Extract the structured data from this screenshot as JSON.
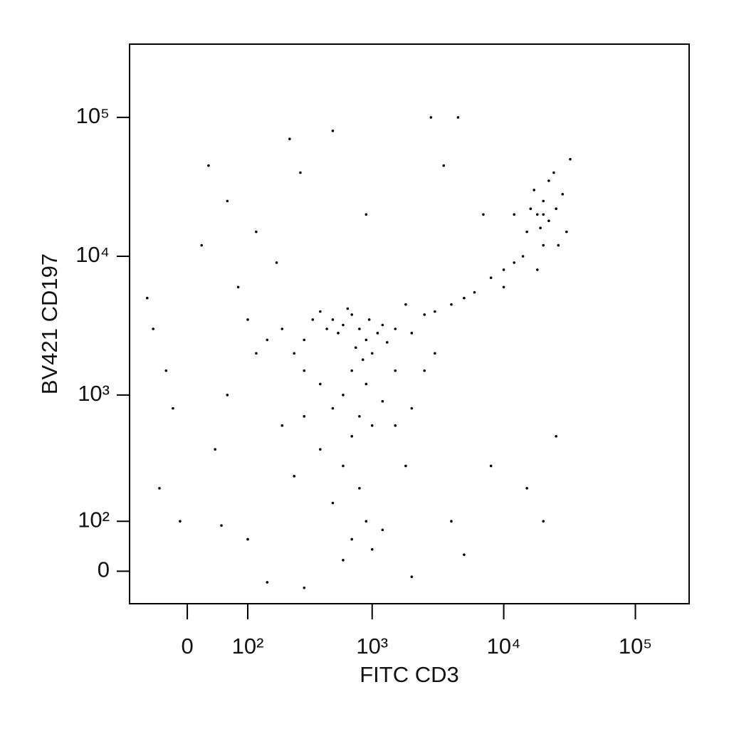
{
  "chart_data": {
    "type": "scatter",
    "x_label": "FITC CD3",
    "y_label": "BV421 CD197",
    "xscale": "biexponential",
    "yscale": "biexponential",
    "xlim": [
      -94,
      256000
    ],
    "ylim": [
      -61,
      337000
    ],
    "xticks": [
      0,
      {
        "value": 100,
        "label": "10²"
      },
      {
        "value": 1000,
        "label": "10³"
      },
      {
        "value": 10000,
        "label": "10⁴"
      },
      {
        "value": 100000,
        "label": "10⁵"
      }
    ],
    "yticks": [
      0,
      {
        "value": 100,
        "label": "10²"
      },
      {
        "value": 1000,
        "label": "10³"
      },
      {
        "value": 10000,
        "label": "10⁴"
      },
      {
        "value": 100000,
        "label": "10⁵"
      }
    ],
    "color": "#000000",
    "x": [
      500,
      600,
      700,
      800,
      900,
      1000,
      550,
      650,
      750,
      850,
      950,
      1100,
      1200,
      450,
      400,
      350,
      300,
      1300,
      1500,
      2000,
      700,
      900,
      600,
      500,
      800,
      1000,
      1200,
      400,
      300,
      250,
      200,
      150,
      100,
      1800,
      2500,
      3000,
      4000,
      5000,
      6000,
      8000,
      10000,
      12000,
      3000,
      2500,
      1500,
      700,
      600,
      800,
      500,
      900,
      1200,
      400,
      300,
      200,
      1500,
      2000,
      1800,
      700,
      1000,
      600,
      15000,
      18000,
      20000,
      22000,
      25000,
      17000,
      20000,
      14000,
      28000,
      16000,
      22000,
      30000,
      12000,
      19000,
      24000,
      32000,
      18000,
      10000,
      26000,
      20000,
      -50,
      -30,
      -60,
      -20,
      20,
      30,
      60,
      80,
      120,
      180,
      230,
      280,
      500,
      900,
      2800,
      4500,
      3500,
      7000,
      -40,
      40,
      -10,
      50,
      100,
      150,
      300,
      2000,
      5000,
      25000,
      15000,
      20000,
      4000,
      8000,
      60,
      120,
      250
    ],
    "y": [
      3500,
      3200,
      3800,
      3000,
      2500,
      2000,
      2800,
      4200,
      2200,
      1800,
      3500,
      2800,
      3200,
      3000,
      4000,
      3500,
      2500,
      2400,
      3000,
      2800,
      1500,
      1200,
      1000,
      800,
      700,
      600,
      900,
      1200,
      1500,
      2000,
      3000,
      2500,
      3500,
      4500,
      3800,
      4000,
      4500,
      5000,
      5500,
      7000,
      8000,
      9000,
      2000,
      1500,
      1500,
      500,
      300,
      200,
      150,
      100,
      80,
      400,
      700,
      600,
      600,
      800,
      300,
      60,
      40,
      20,
      15000,
      20000,
      25000,
      18000,
      22000,
      30000,
      12000,
      10000,
      28000,
      22000,
      35000,
      15000,
      20000,
      16000,
      40000,
      50000,
      8000,
      6000,
      12000,
      20000,
      3000,
      1500,
      5000,
      800,
      12000,
      45000,
      25000,
      6000,
      15000,
      9000,
      70000,
      40000,
      80000,
      20000,
      100000,
      100000,
      45000,
      20000,
      200,
      400,
      100,
      90,
      60,
      -20,
      -30,
      -10,
      30,
      500,
      200,
      100,
      100,
      300,
      1000,
      2000,
      250
    ]
  }
}
